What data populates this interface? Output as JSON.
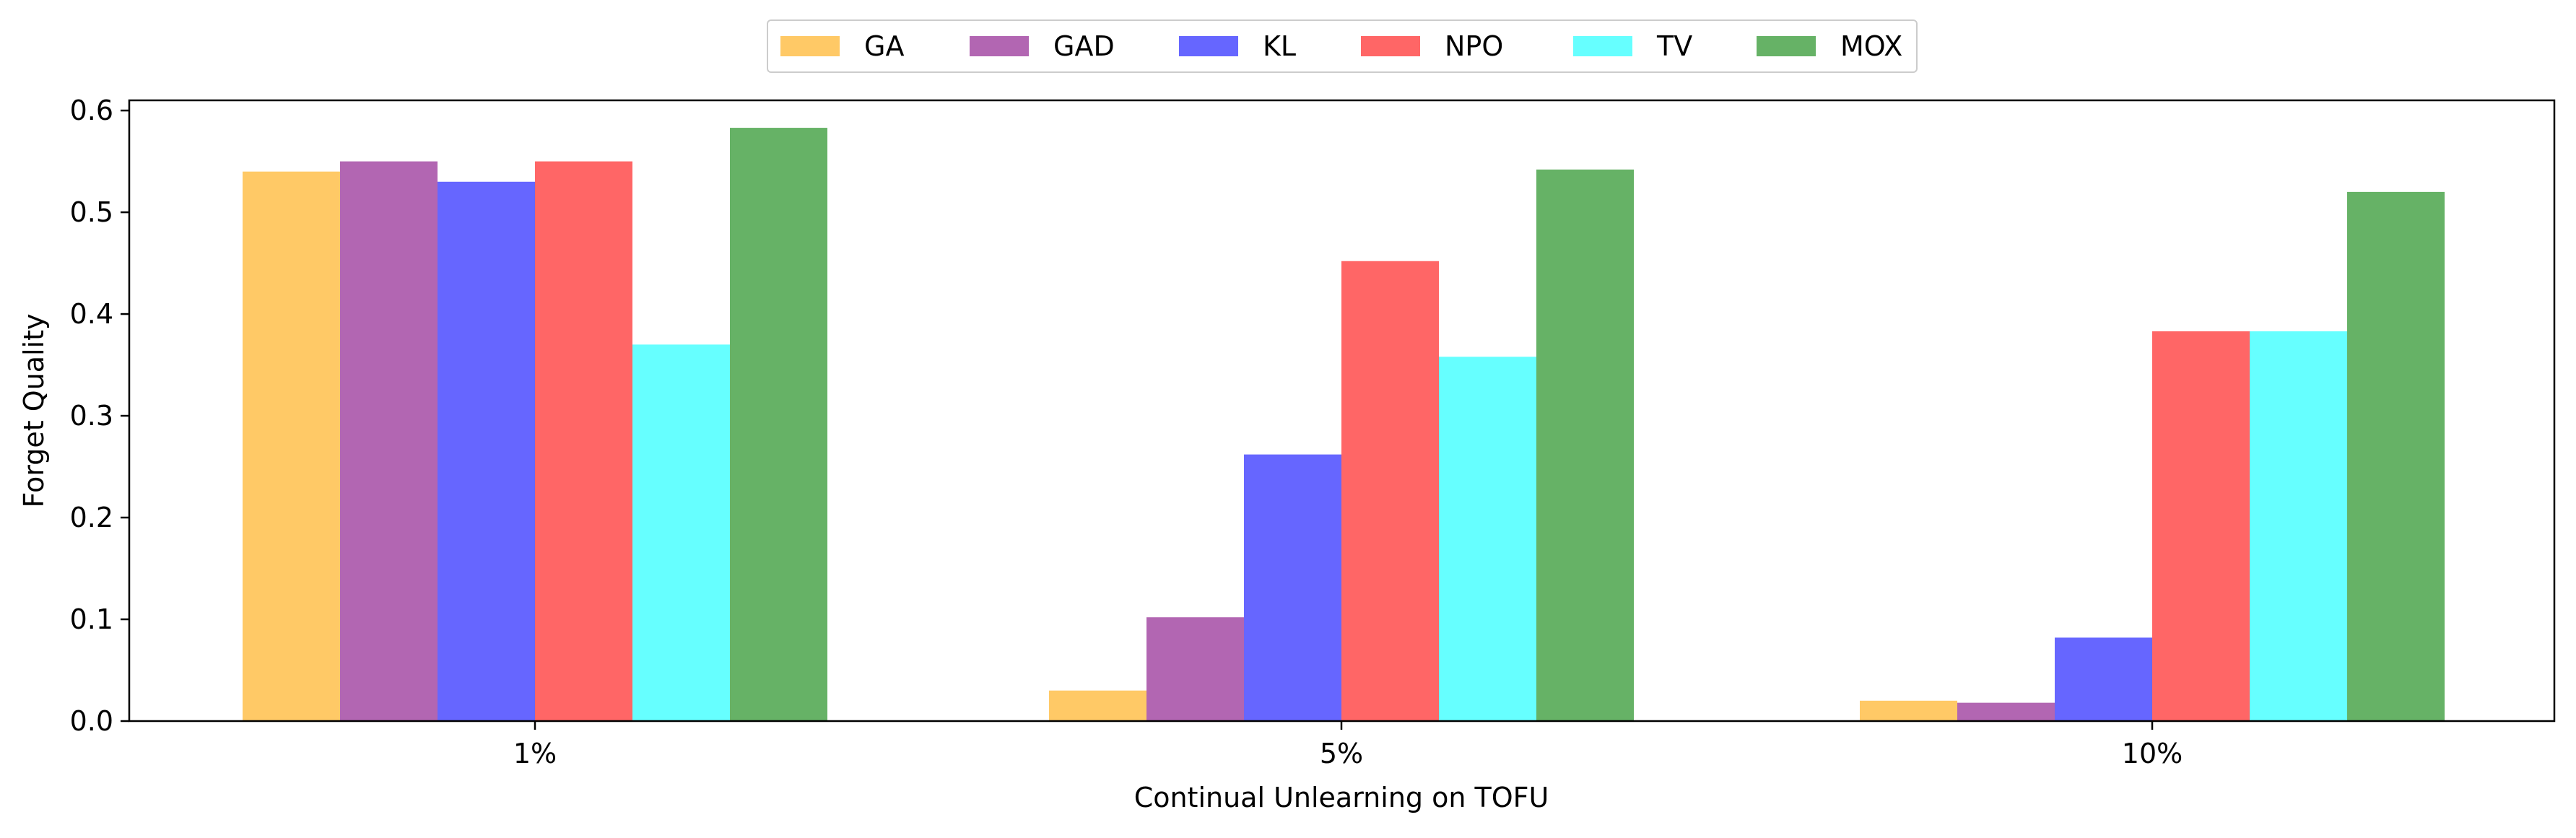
{
  "chart_data": {
    "type": "bar",
    "title": "",
    "xlabel": "Continual Unlearning on TOFU",
    "ylabel": "Forget Quality",
    "categories": [
      "1%",
      "5%",
      "10%"
    ],
    "ylim": [
      0,
      0.61
    ],
    "yticks": [
      "0.0",
      "0.1",
      "0.2",
      "0.3",
      "0.4",
      "0.5",
      "0.6"
    ],
    "grid": false,
    "legend_position": "top-center",
    "series": [
      {
        "name": "GA",
        "color": "#FFC966",
        "values": [
          0.54,
          0.03,
          0.02
        ]
      },
      {
        "name": "GAD",
        "color": "#B266B2",
        "values": [
          0.55,
          0.102,
          0.018
        ]
      },
      {
        "name": "KL",
        "color": "#6666FF",
        "values": [
          0.53,
          0.262,
          0.082
        ]
      },
      {
        "name": "NPO",
        "color": "#FF6666",
        "values": [
          0.55,
          0.452,
          0.383
        ]
      },
      {
        "name": "TV",
        "color": "#66FFFF",
        "values": [
          0.37,
          0.358,
          0.383
        ]
      },
      {
        "name": "MOX",
        "color": "#66B266",
        "values": [
          0.583,
          0.542,
          0.52
        ]
      }
    ]
  }
}
